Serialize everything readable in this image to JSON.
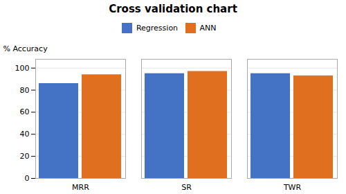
{
  "chart_data": {
    "type": "bar",
    "title": "Cross validation chart",
    "categories": [
      "MRR",
      "SR",
      "TWR"
    ],
    "series": [
      {
        "name": "Regression",
        "color": "#4472C4",
        "values": [
          86,
          95,
          95
        ]
      },
      {
        "name": "ANN",
        "color": "#E07020",
        "values": [
          94,
          97,
          93
        ]
      }
    ],
    "ylabel": "% Accuracy",
    "ylim": [
      0,
      108
    ],
    "yticks": [
      0,
      20,
      40,
      60,
      80,
      100
    ],
    "grid": true,
    "legend": "top"
  }
}
